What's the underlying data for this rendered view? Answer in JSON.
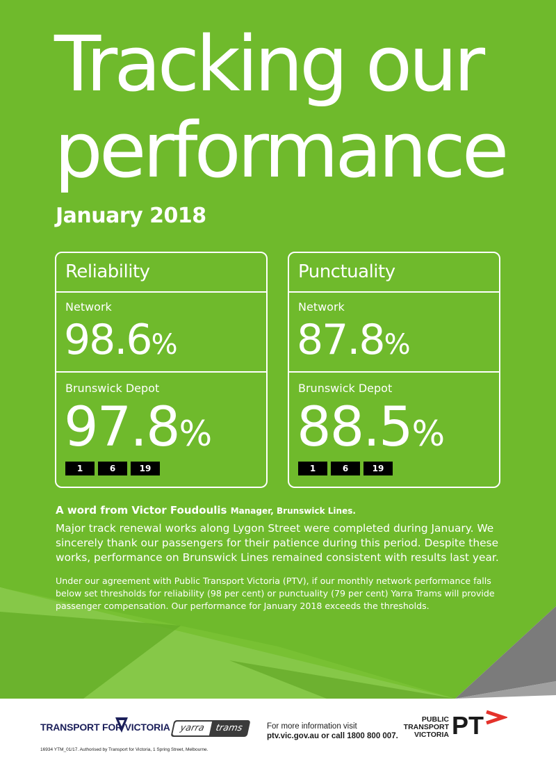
{
  "header": {
    "title_line1": "Tracking our",
    "title_line2": "performance",
    "period": "January 2018"
  },
  "reliability": {
    "title": "Reliability",
    "network_label": "Network",
    "network_value": "98.6",
    "depot_label": "Brunswick Depot",
    "depot_value": "97.8",
    "percent_sign": "%",
    "routes": [
      "1",
      "6",
      "19"
    ]
  },
  "punctuality": {
    "title": "Punctuality",
    "network_label": "Network",
    "network_value": "87.8",
    "depot_label": "Brunswick Depot",
    "depot_value": "88.5",
    "percent_sign": "%",
    "routes": [
      "1",
      "6",
      "19"
    ]
  },
  "word": {
    "heading": "A word from Victor Foudoulis",
    "role": "Manager, Brunswick Lines.",
    "body": "Major track renewal works along Lygon Street were completed during January. We sincerely thank our passengers for their patience during this period. Despite these works, performance on Brunswick Lines remained consistent with results last year.",
    "fine_print": "Under our agreement with Public Transport Victoria (PTV), if our monthly network performance falls below set thresholds for reliability (98 per cent) or punctuality (79 per cent) Yarra Trams will provide passenger compensation. Our performance for January 2018 exceeds the thresholds."
  },
  "footer": {
    "tfv_logo_text": "TRANSPORT FOR VICTORIA",
    "yarra_logo_word1": "yarra",
    "yarra_logo_word2": "trams",
    "info_line1": "For more information visit",
    "info_line2": "ptv.vic.gov.au or call 1800 800 007.",
    "ptv_line1": "PUBLIC",
    "ptv_line2": "TRANSPORT",
    "ptv_line3": "VICTORIA",
    "ptv_mark_text": "PT",
    "authorisation": "16934 YTM_01/17. Authorised by Transport for Victoria, 1 Spring Street, Melbourne."
  },
  "colors": {
    "green": "#6fba2c",
    "green_dark": "#62a726",
    "navy": "#1b1f5a",
    "red": "#e4322b"
  }
}
